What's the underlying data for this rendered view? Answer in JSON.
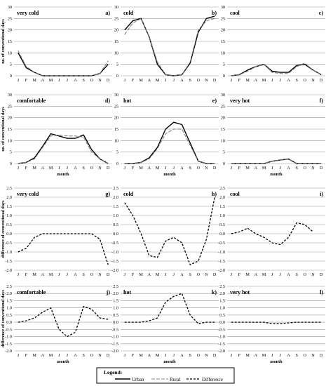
{
  "chart_data": [
    {
      "type": "line",
      "letter": "a)",
      "title": "very cold",
      "ylabel": "no. of conventional days",
      "xlabel": "",
      "ylim": [
        0,
        30
      ],
      "yticks": [
        0,
        5,
        10,
        15,
        20,
        25,
        30
      ],
      "grid": true,
      "series": [
        {
          "name": "Urban",
          "values": [
            10,
            3.5,
            1.5,
            0,
            0,
            0,
            0,
            0,
            0,
            0,
            1,
            5
          ]
        },
        {
          "name": "Rural",
          "values": [
            11,
            4,
            1.5,
            0,
            0,
            0,
            0,
            0,
            0,
            0,
            1,
            6.5
          ]
        }
      ]
    },
    {
      "type": "line",
      "letter": "b)",
      "title": "cold",
      "ylabel": "",
      "xlabel": "",
      "ylim": [
        0,
        30
      ],
      "yticks": [
        0,
        5,
        10,
        15,
        20,
        25,
        30
      ],
      "grid": true,
      "series": [
        {
          "name": "Urban",
          "values": [
            20,
            24,
            25,
            17,
            5,
            0.5,
            0,
            0.5,
            5.5,
            19,
            25,
            26
          ]
        },
        {
          "name": "Rural",
          "values": [
            18,
            23,
            25,
            17,
            6,
            0.5,
            0,
            0.5,
            6,
            20,
            24,
            25
          ]
        }
      ]
    },
    {
      "type": "line",
      "letter": "c)",
      "title": "cool",
      "ylabel": "",
      "xlabel": "",
      "ylim": [
        0,
        30
      ],
      "yticks": [
        0,
        5,
        10,
        15,
        20,
        25,
        30
      ],
      "grid": true,
      "series": [
        {
          "name": "Urban",
          "values": [
            0,
            0.5,
            2.5,
            4,
            5,
            2,
            1.5,
            1.5,
            4.5,
            5,
            2.5,
            0.5
          ]
        },
        {
          "name": "Rural",
          "values": [
            0,
            0.5,
            2,
            4,
            5,
            1.5,
            1,
            1,
            4,
            5.5,
            2.5,
            0.5
          ]
        }
      ]
    },
    {
      "type": "line",
      "letter": "d)",
      "title": "comfortable",
      "ylabel": "no. of conventional days",
      "xlabel": "month",
      "ylim": [
        0,
        30
      ],
      "yticks": [
        0,
        5,
        10,
        15,
        20,
        25,
        30
      ],
      "grid": true,
      "series": [
        {
          "name": "Urban",
          "values": [
            0,
            0.5,
            2.5,
            7.5,
            13,
            12,
            11,
            11,
            12.5,
            6,
            2,
            0
          ]
        },
        {
          "name": "Rural",
          "values": [
            0,
            0.5,
            2,
            7,
            12,
            12.5,
            12,
            12,
            11.5,
            5,
            2,
            0
          ]
        }
      ]
    },
    {
      "type": "line",
      "letter": "e)",
      "title": "hot",
      "ylabel": "",
      "xlabel": "month",
      "ylim": [
        0,
        30
      ],
      "yticks": [
        0,
        5,
        10,
        15,
        20,
        25,
        30
      ],
      "grid": true,
      "series": [
        {
          "name": "Urban",
          "values": [
            0,
            0,
            0.5,
            2.5,
            7,
            15,
            18,
            17,
            9,
            1,
            0,
            0
          ]
        },
        {
          "name": "Rural",
          "values": [
            0,
            0,
            0.5,
            2,
            6.5,
            13,
            15,
            15,
            8,
            1,
            0,
            0
          ]
        }
      ]
    },
    {
      "type": "line",
      "letter": "f)",
      "title": "very hot",
      "ylabel": "",
      "xlabel": "month",
      "ylim": [
        0,
        30
      ],
      "yticks": [
        0,
        5,
        10,
        15,
        20,
        25,
        30
      ],
      "grid": true,
      "series": [
        {
          "name": "Urban",
          "values": [
            0,
            0,
            0,
            0,
            0,
            1,
            1.5,
            2,
            0,
            0,
            0,
            0
          ]
        },
        {
          "name": "Rural",
          "values": [
            0,
            0,
            0,
            0,
            0,
            1,
            1.5,
            2,
            0,
            0,
            0,
            0
          ]
        }
      ]
    },
    {
      "type": "line",
      "letter": "g)",
      "title": "very cold",
      "ylabel": "difference of conventional days",
      "xlabel": "",
      "ylim": [
        -2,
        2.5
      ],
      "yticks": [
        -2,
        -1.5,
        -1,
        -0.5,
        0,
        0.5,
        1,
        1.5,
        2,
        2.5
      ],
      "grid": true,
      "series": [
        {
          "name": "Difference",
          "values": [
            -1,
            -0.8,
            -0.2,
            0,
            0,
            0,
            0,
            0,
            0,
            0,
            -0.3,
            -1.7
          ]
        }
      ]
    },
    {
      "type": "line",
      "letter": "h)",
      "title": "cold",
      "ylabel": "",
      "xlabel": "",
      "ylim": [
        -2,
        2.5
      ],
      "yticks": [
        -2,
        -1.5,
        -1,
        -0.5,
        0,
        0.5,
        1,
        1.5,
        2,
        2.5
      ],
      "grid": true,
      "series": [
        {
          "name": "Difference",
          "values": [
            1.7,
            1,
            0,
            -1.2,
            -1.3,
            -0.4,
            -0.2,
            -0.5,
            -1.7,
            -1.5,
            -0.3,
            2
          ]
        }
      ]
    },
    {
      "type": "line",
      "letter": "i)",
      "title": "cool",
      "ylabel": "",
      "xlabel": "",
      "ylim": [
        -2,
        2.5
      ],
      "yticks": [
        -2,
        -1.5,
        -1,
        -0.5,
        0,
        0.5,
        1,
        1.5,
        2,
        2.5
      ],
      "grid": true,
      "series": [
        {
          "name": "Difference",
          "values": [
            0,
            0.1,
            0.3,
            0,
            -0.2,
            -0.5,
            -0.6,
            -0.2,
            0.6,
            0.5,
            0.1,
            null
          ]
        }
      ]
    },
    {
      "type": "line",
      "letter": "j)",
      "title": "comfortable",
      "ylabel": "difference of conventional days",
      "xlabel": "month",
      "ylim": [
        -2,
        2.5
      ],
      "yticks": [
        -2,
        -1.5,
        -1,
        -0.5,
        0,
        0.5,
        1,
        1.5,
        2,
        2.5
      ],
      "grid": true,
      "series": [
        {
          "name": "Difference",
          "values": [
            0,
            0.1,
            0.3,
            0.7,
            1,
            -0.5,
            -1,
            -0.7,
            1.1,
            0.9,
            0.3,
            0.2
          ]
        }
      ]
    },
    {
      "type": "line",
      "letter": "k)",
      "title": "hot",
      "ylabel": "",
      "xlabel": "month",
      "ylim": [
        -2,
        2.5
      ],
      "yticks": [
        -2,
        -1.5,
        -1,
        -0.5,
        0,
        0.5,
        1,
        1.5,
        2,
        2.5
      ],
      "grid": true,
      "series": [
        {
          "name": "Difference",
          "values": [
            0,
            0,
            0,
            0.1,
            0.3,
            1.4,
            1.8,
            2,
            0.5,
            -0.1,
            0,
            0
          ]
        }
      ]
    },
    {
      "type": "line",
      "letter": "l)",
      "title": "very hot",
      "ylabel": "",
      "xlabel": "month",
      "ylim": [
        -2,
        2.5
      ],
      "yticks": [
        -2,
        -1.5,
        -1,
        -0.5,
        0,
        0.5,
        1,
        1.5,
        2,
        2.5
      ],
      "grid": true,
      "series": [
        {
          "name": "Difference",
          "values": [
            0,
            0,
            0,
            0,
            0,
            -0.1,
            -0.1,
            -0.05,
            0,
            0,
            0,
            0
          ]
        }
      ]
    }
  ],
  "months": [
    "J",
    "F",
    "M",
    "A",
    "M",
    "J",
    "J",
    "A",
    "S",
    "O",
    "N",
    "D"
  ],
  "legend": {
    "title": "Legend:",
    "urban": "Urban",
    "rural": "Rural",
    "difference": "Difference"
  }
}
